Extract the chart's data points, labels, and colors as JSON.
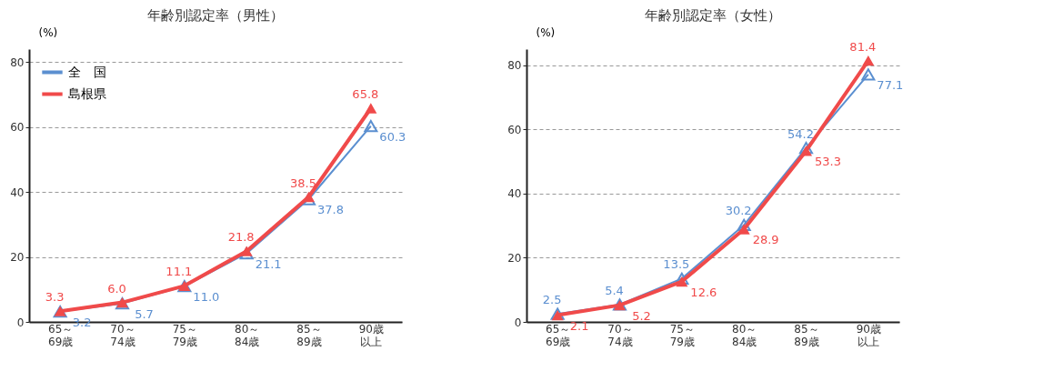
{
  "chart_data": [
    {
      "type": "line",
      "title": "年齢別認定率（男性）",
      "ylabel": "(%)",
      "categories": [
        "65～69歳",
        "70～74歳",
        "75～79歳",
        "80～84歳",
        "85～89歳",
        "90歳以上"
      ],
      "series": [
        {
          "name": "全　国",
          "color": "#5b8fd0",
          "values": [
            3.2,
            5.7,
            11.0,
            21.1,
            37.8,
            60.3
          ],
          "value_labels": [
            "3.2",
            "5.7",
            "11.0",
            "21.1",
            "37.8",
            "60.3"
          ]
        },
        {
          "name": "島根県",
          "color": "#f04a4a",
          "values": [
            3.3,
            6.0,
            11.1,
            21.8,
            38.5,
            65.8
          ],
          "value_labels": [
            "3.3",
            "6.0",
            "11.1",
            "21.8",
            "38.5",
            "65.8"
          ]
        }
      ],
      "ylim": [
        0,
        84
      ],
      "yticks": [
        0,
        20,
        40,
        60,
        80
      ],
      "grid": "y",
      "legend": "top left",
      "marker": "triangle",
      "line_style": "solid"
    },
    {
      "type": "line",
      "title": "年齢別認定率（女性）",
      "ylabel": "(%)",
      "categories": [
        "65～69歳",
        "70～74歳",
        "75～79歳",
        "80～84歳",
        "85～89歳",
        "90歳以上"
      ],
      "series": [
        {
          "name": "全　国",
          "color": "#5b8fd0",
          "values": [
            2.5,
            5.4,
            13.5,
            30.2,
            54.2,
            77.1
          ],
          "value_labels": [
            "2.5",
            "5.4",
            "13.5",
            "30.2",
            "54.2",
            "77.1"
          ]
        },
        {
          "name": "島根県",
          "color": "#f04a4a",
          "values": [
            2.1,
            5.2,
            12.6,
            28.9,
            53.3,
            81.4
          ],
          "value_labels": [
            "2.1",
            "5.2",
            "12.6",
            "28.9",
            "53.3",
            "81.4"
          ]
        }
      ],
      "ylim": [
        0,
        85
      ],
      "yticks": [
        0,
        20,
        40,
        60,
        80
      ],
      "grid": "y",
      "legend": "top left",
      "marker": "triangle",
      "line_style": "solid"
    }
  ]
}
